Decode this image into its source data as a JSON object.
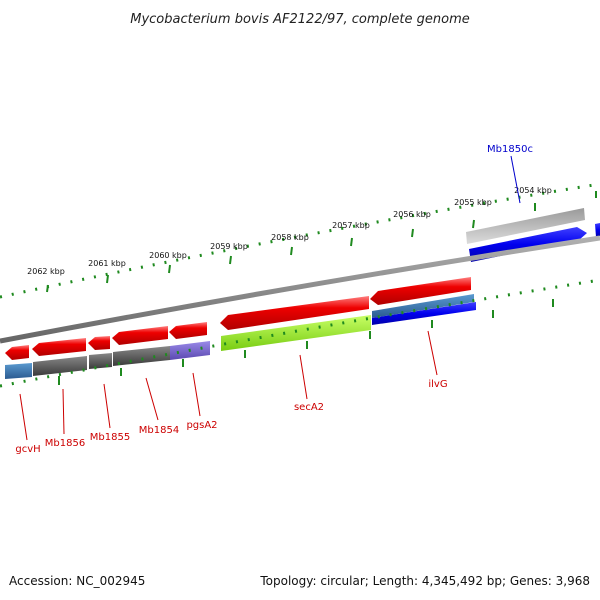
{
  "title": "Mycobacterium bovis AF2122/97, complete genome",
  "footer": {
    "accession": "Accession: NC_002945",
    "summary": "Topology: circular; Length: 4,345,492 bp; Genes: 3,968"
  },
  "colors": {
    "background": "#ffffff",
    "cds_red": "#ee0000",
    "tick_green": "#1f8a1f",
    "backbone_gray": "#8a8a8a",
    "label_red": "#cc0000",
    "label_blue": "#0000cc",
    "blue_feature": "#0000ee",
    "light_gray_feature": "#b8b8b8",
    "dark_gray_feature": "#555555",
    "lime_feature": "#99ee22",
    "steel_blue_feature": "#3a78b0",
    "purple_feature": "#7766cc"
  },
  "tick_labels": [
    {
      "id": "2062",
      "label": "2062 kbp"
    },
    {
      "id": "2061",
      "label": "2061 kbp"
    },
    {
      "id": "2060",
      "label": "2060 kbp"
    },
    {
      "id": "2059",
      "label": "2059 kbp"
    },
    {
      "id": "2058",
      "label": "2058 kbp"
    },
    {
      "id": "2057",
      "label": "2057 kbp"
    },
    {
      "id": "2056",
      "label": "2056 kbp"
    },
    {
      "id": "2055",
      "label": "2055 kbp"
    },
    {
      "id": "2054",
      "label": "2054 kbp"
    }
  ],
  "gene_labels": [
    {
      "id": "gcvH",
      "label": "gcvH",
      "strand": "reverse"
    },
    {
      "id": "Mb1856",
      "label": "Mb1856",
      "strand": "reverse"
    },
    {
      "id": "Mb1855",
      "label": "Mb1855",
      "strand": "reverse"
    },
    {
      "id": "Mb1854",
      "label": "Mb1854",
      "strand": "reverse"
    },
    {
      "id": "pgsA2",
      "label": "pgsA2",
      "strand": "reverse"
    },
    {
      "id": "secA2",
      "label": "secA2",
      "strand": "reverse"
    },
    {
      "id": "ilvG",
      "label": "ilvG",
      "strand": "reverse"
    },
    {
      "id": "Mb1850c",
      "label": "Mb1850c",
      "strand": "forward"
    }
  ]
}
